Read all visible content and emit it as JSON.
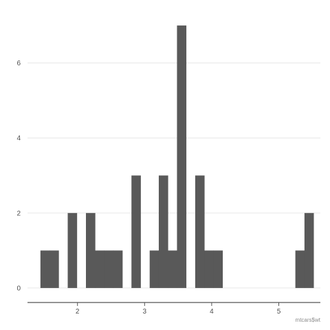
{
  "chart_data": {
    "type": "bar",
    "subtype": "histogram",
    "xlabel": "mtcars$wt",
    "ylabel": "",
    "title": "",
    "bar_color": "#595959",
    "grid": "horizontal-major",
    "xlim": [
      1.255,
      5.62
    ],
    "ylim": [
      -0.35,
      7.35
    ],
    "x_ticks": [
      2,
      3,
      4,
      5
    ],
    "y_ticks": [
      0,
      2,
      4,
      6
    ],
    "x_tick_labels": [
      "2",
      "3",
      "4",
      "5"
    ],
    "y_tick_labels": [
      "0",
      "2",
      "4",
      "6"
    ],
    "bin_width": 0.1357,
    "bins": [
      {
        "x0": 1.4475,
        "x1": 1.5832,
        "count": 1
      },
      {
        "x0": 1.5832,
        "x1": 1.7189,
        "count": 1
      },
      {
        "x0": 1.8546,
        "x1": 1.9903,
        "count": 2
      },
      {
        "x0": 2.126,
        "x1": 2.2617,
        "count": 2
      },
      {
        "x0": 2.2617,
        "x1": 2.3974,
        "count": 1
      },
      {
        "x0": 2.3974,
        "x1": 2.5331,
        "count": 1
      },
      {
        "x0": 2.5331,
        "x1": 2.6688,
        "count": 1
      },
      {
        "x0": 2.8045,
        "x1": 2.9402,
        "count": 3
      },
      {
        "x0": 3.0759,
        "x1": 3.2116,
        "count": 1
      },
      {
        "x0": 3.2116,
        "x1": 3.3473,
        "count": 3
      },
      {
        "x0": 3.3473,
        "x1": 3.483,
        "count": 1
      },
      {
        "x0": 3.483,
        "x1": 3.6187,
        "count": 7
      },
      {
        "x0": 3.7544,
        "x1": 3.8901,
        "count": 3
      },
      {
        "x0": 3.8901,
        "x1": 4.0258,
        "count": 1
      },
      {
        "x0": 4.0258,
        "x1": 4.1615,
        "count": 1
      },
      {
        "x0": 5.2471,
        "x1": 5.3828,
        "count": 1
      },
      {
        "x0": 5.3828,
        "x1": 5.5185,
        "count": 2
      }
    ]
  }
}
